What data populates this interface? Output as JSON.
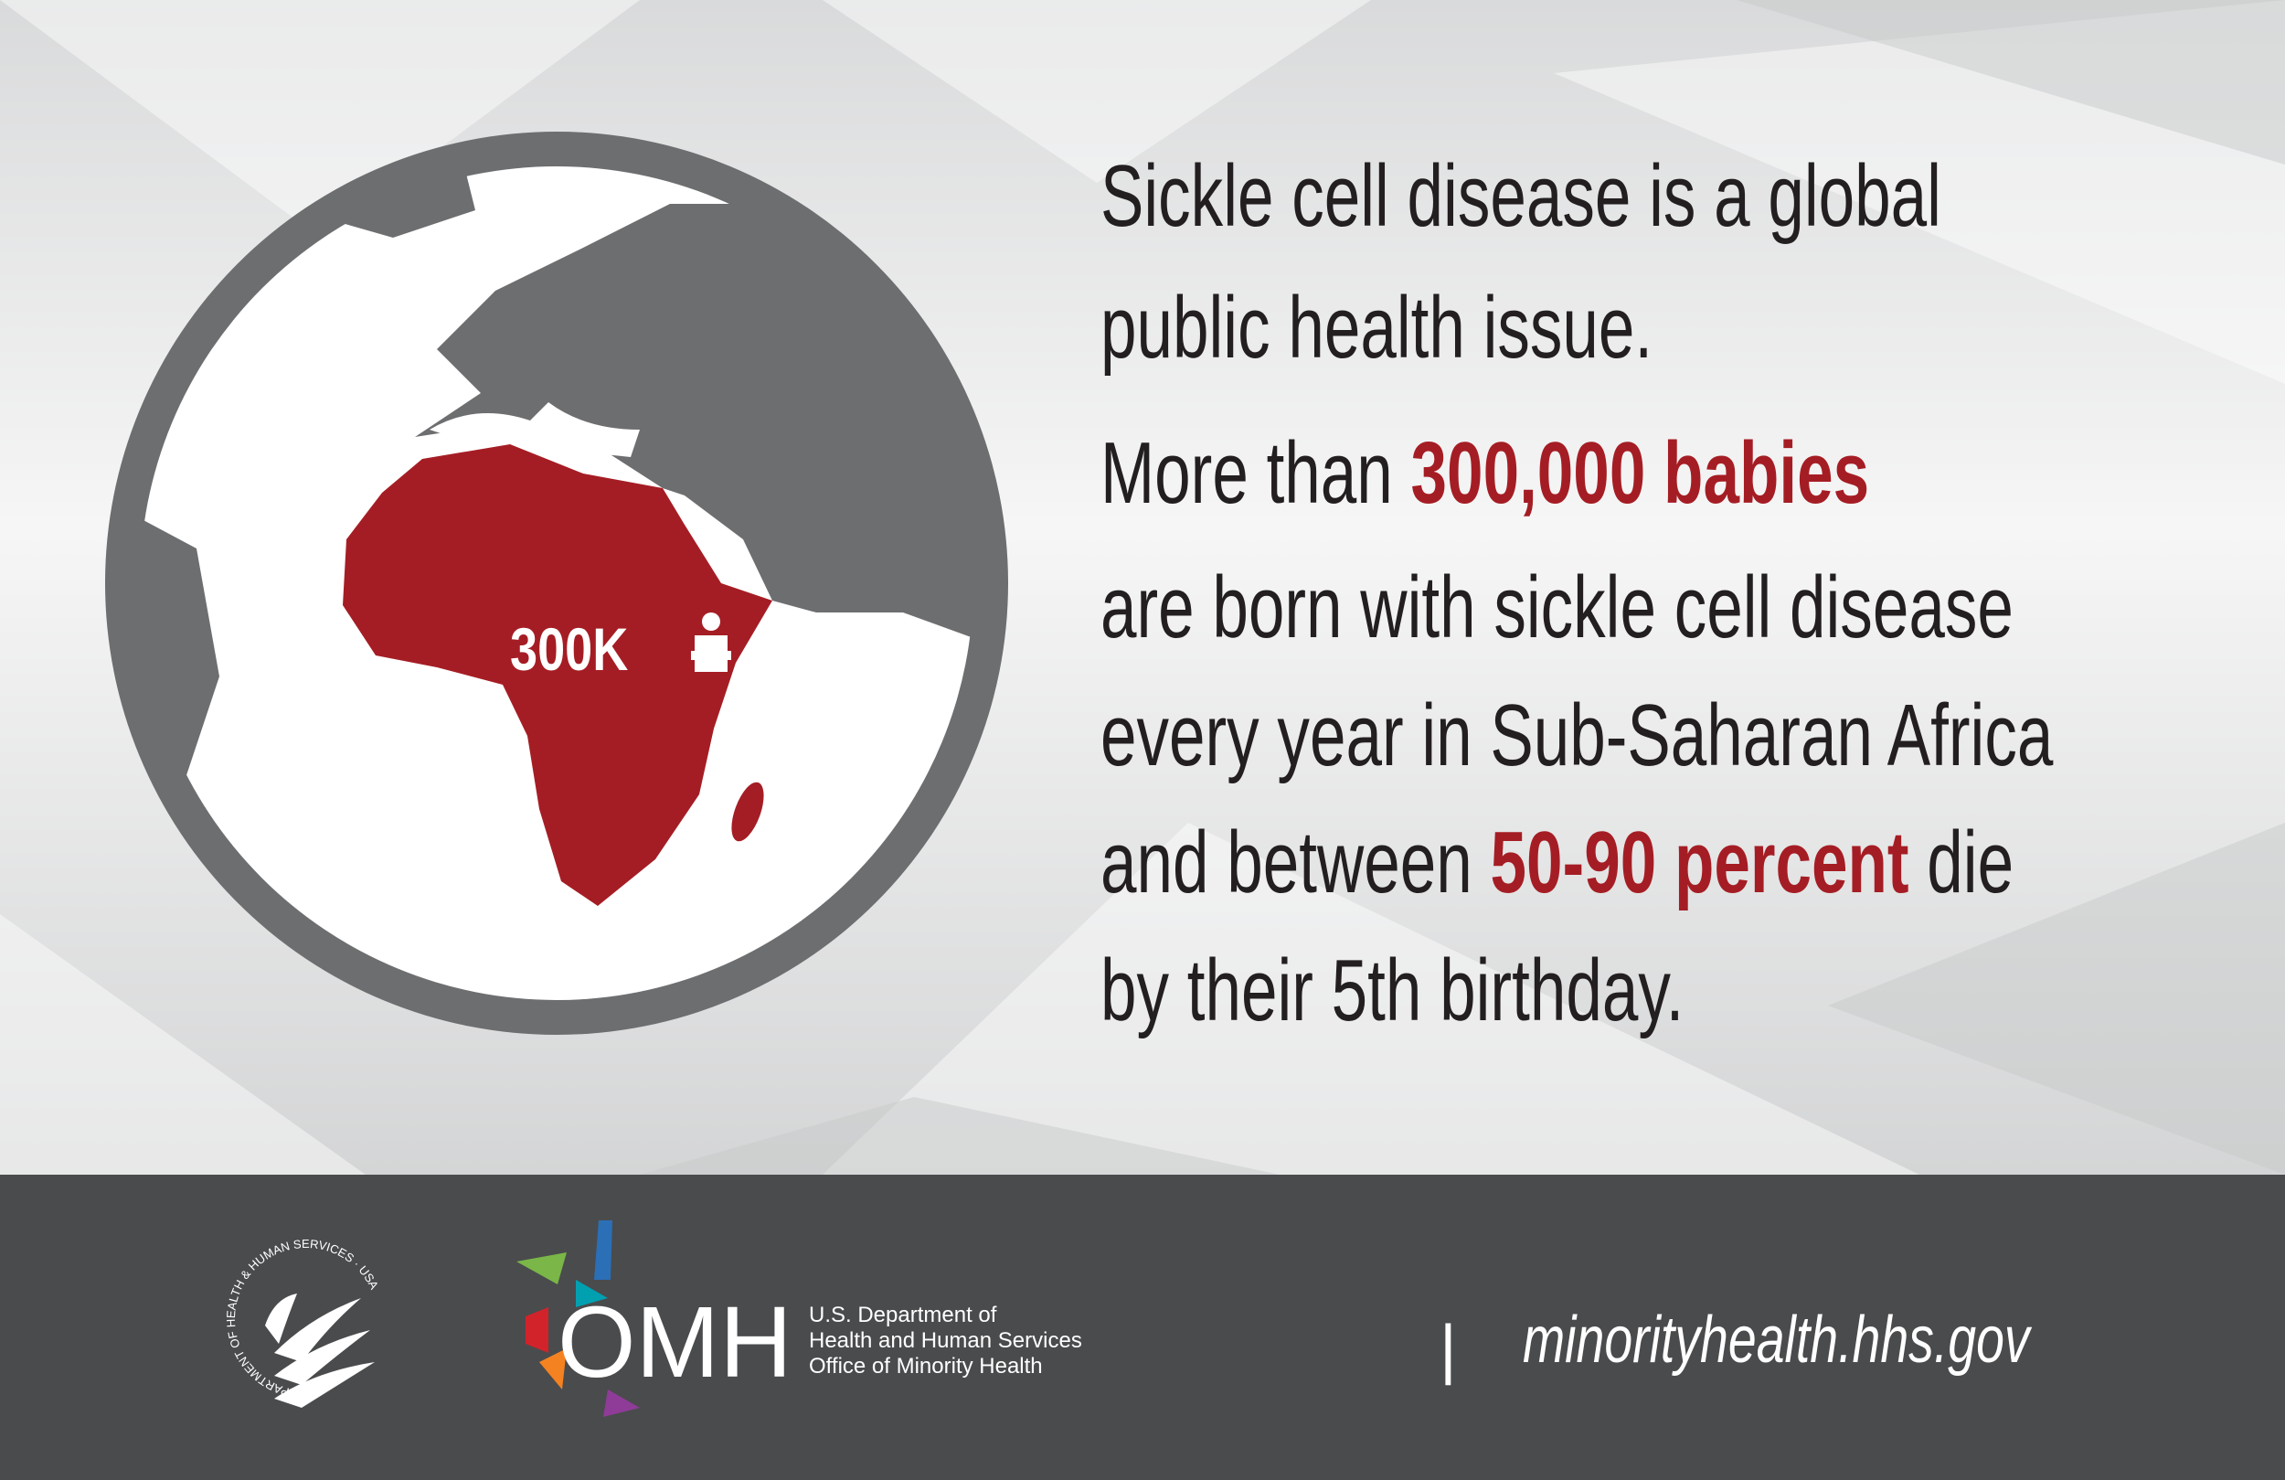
{
  "headline": [
    "Sickle cell disease is a global",
    "public health issue."
  ],
  "body": [
    [
      "More than ",
      "300,000 babies"
    ],
    [
      "are born with sickle cell disease"
    ],
    [
      "every year in Sub-Saharan Africa"
    ],
    [
      "and between ",
      "50-90 percent",
      " die"
    ],
    [
      "by their 5th birthday."
    ]
  ],
  "globe": {
    "label": "300K"
  },
  "footer": {
    "seal_text": "DEPARTMENT OF HEALTH & HUMAN SERVICES · USA",
    "logo": {
      "name": "OMH",
      "lines": [
        "U.S. Department of",
        "Health and Human Services",
        "Office of Minority Health"
      ]
    },
    "separator": "|",
    "url": "minorityhealth.hhs.gov"
  }
}
